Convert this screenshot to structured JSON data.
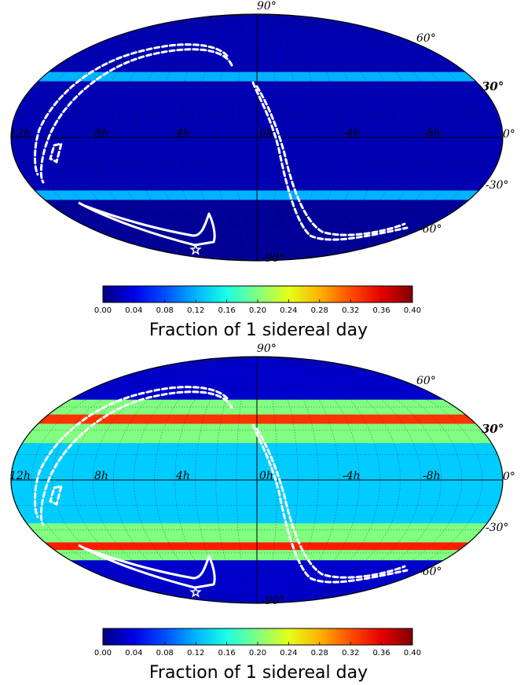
{
  "chart_data": [
    {
      "type": "heatmap",
      "projection": "mollweide",
      "lat_ticks": [
        "90°",
        "60°",
        "30°",
        "0°",
        "-30°",
        "-60°",
        "-90°"
      ],
      "ra_ticks": [
        "12h",
        "8h",
        "4h",
        "0h",
        "-4h",
        "-8h"
      ],
      "bands": [
        {
          "dec_min": 90,
          "dec_max": 40,
          "value": 0.02
        },
        {
          "dec_min": 40,
          "dec_max": 34,
          "value": 0.12
        },
        {
          "dec_min": 34,
          "dec_max": -32,
          "value": 0.02
        },
        {
          "dec_min": -32,
          "dec_max": -38,
          "value": 0.12
        },
        {
          "dec_min": -38,
          "dec_max": -90,
          "value": 0.01
        }
      ],
      "colorbar": {
        "ticks": [
          "0.00",
          "0.04",
          "0.08",
          "0.12",
          "0.16",
          "0.20",
          "0.24",
          "0.28",
          "0.32",
          "0.36",
          "0.40"
        ],
        "range": [
          0.0,
          0.4
        ],
        "label": "Fraction of 1 sidereal day",
        "colormap": "jet"
      },
      "grid": true,
      "contour_color": "#ffffff"
    },
    {
      "type": "heatmap",
      "projection": "mollweide",
      "lat_ticks": [
        "90°",
        "60°",
        "30°",
        "0°",
        "-30°",
        "-60°",
        "-90°"
      ],
      "ra_ticks": [
        "12h",
        "8h",
        "4h",
        "0h",
        "-4h",
        "-8h"
      ],
      "bands": [
        {
          "dec_min": 90,
          "dec_max": 50,
          "value": 0.03
        },
        {
          "dec_min": 50,
          "dec_max": 40,
          "value": 0.2
        },
        {
          "dec_min": 40,
          "dec_max": 34,
          "value": 0.33
        },
        {
          "dec_min": 34,
          "dec_max": 22,
          "value": 0.2
        },
        {
          "dec_min": 22,
          "dec_max": -26,
          "value": 0.13
        },
        {
          "dec_min": -26,
          "dec_max": -38,
          "value": 0.2
        },
        {
          "dec_min": -38,
          "dec_max": -43,
          "value": 0.34
        },
        {
          "dec_min": -43,
          "dec_max": -50,
          "value": 0.2
        },
        {
          "dec_min": -50,
          "dec_max": -90,
          "value": 0.03
        }
      ],
      "colorbar": {
        "ticks": [
          "0.00",
          "0.04",
          "0.08",
          "0.12",
          "0.16",
          "0.20",
          "0.24",
          "0.28",
          "0.32",
          "0.36",
          "0.40"
        ],
        "range": [
          0.0,
          0.4
        ],
        "label": "Fraction of 1 sidereal day",
        "colormap": "jet"
      },
      "grid": true,
      "contour_color": "#ffffff"
    }
  ]
}
